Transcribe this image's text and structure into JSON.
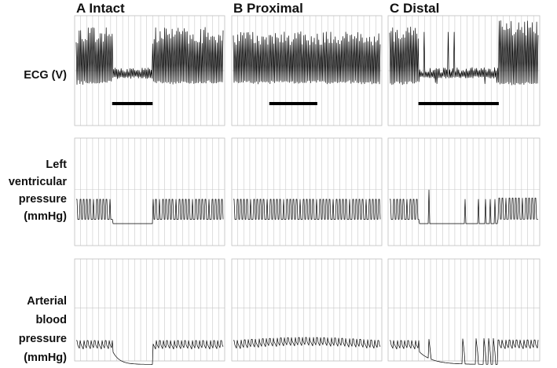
{
  "chart_data": {
    "type": "line",
    "panels": [
      {
        "id": "A",
        "title": "A Intact",
        "stimulus": [
          0.25,
          0.52
        ],
        "ecg": {
          "rate": 1.0,
          "during": "suppressed"
        },
        "lvp": {
          "during": "arrest"
        },
        "abp": {
          "during": "decay"
        }
      },
      {
        "id": "B",
        "title": "B Proximal",
        "stimulus": [
          0.25,
          0.57
        ],
        "ecg": {
          "rate": 1.0,
          "during": "unchanged"
        },
        "lvp": {
          "during": "unchanged"
        },
        "abp": {
          "during": "unchanged"
        }
      },
      {
        "id": "C",
        "title": "C Distal",
        "stimulus": [
          0.2,
          0.73
        ],
        "ecg": {
          "rate": 1.0,
          "during": "escape"
        },
        "lvp": {
          "during": "escape"
        },
        "abp": {
          "during": "escape"
        }
      }
    ],
    "rows": [
      {
        "key": "ecg",
        "label_lines": [
          "ECG (V)"
        ]
      },
      {
        "key": "lvp",
        "label_lines": [
          "Left",
          "ventricular",
          "pressure",
          "(mmHg)"
        ]
      },
      {
        "key": "abp",
        "label_lines": [
          "Arterial",
          "blood",
          "pressure",
          "(mmHg)"
        ]
      }
    ],
    "grid": true,
    "legend": "none"
  }
}
